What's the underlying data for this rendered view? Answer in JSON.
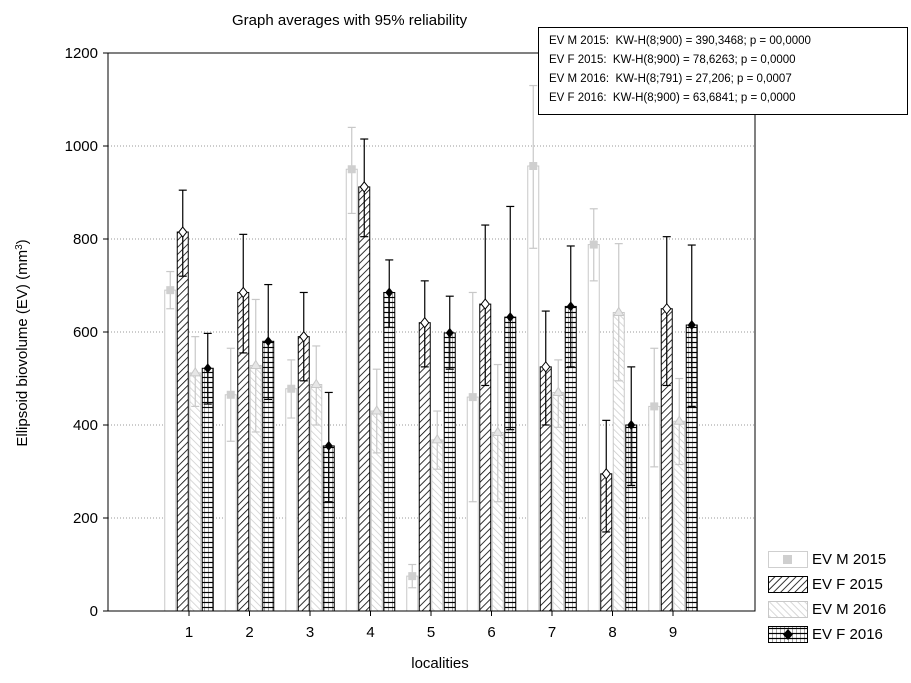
{
  "chart_data": {
    "type": "bar",
    "title": "Graph averages with 95% reliability",
    "xlabel": "localities",
    "ylabel": "Ellipsoid biovolume (EV) (mm",
    "ylabel_sup": "3",
    "ylabel_end": ")",
    "ylim": [
      0,
      1200
    ],
    "yticks": [
      "0",
      "200",
      "400",
      "600",
      "800",
      "1000",
      "1200"
    ],
    "grid": "horizontal dotted",
    "categories": [
      "1",
      "2",
      "3",
      "4",
      "5",
      "6",
      "7",
      "8",
      "9"
    ],
    "series": [
      {
        "name": "EV M 2015",
        "values": [
          690,
          465,
          478,
          950,
          75,
          460,
          957,
          788,
          440
        ],
        "ci_upper": [
          730,
          565,
          540,
          1040,
          100,
          685,
          1130,
          865,
          565
        ],
        "ci_lower": [
          650,
          365,
          415,
          855,
          50,
          235,
          780,
          710,
          310
        ]
      },
      {
        "name": "EV F 2015",
        "values": [
          815,
          685,
          590,
          912,
          620,
          660,
          525,
          295,
          650
        ],
        "ci_upper": [
          905,
          810,
          685,
          1015,
          710,
          830,
          645,
          410,
          805
        ],
        "ci_lower": [
          720,
          555,
          495,
          805,
          525,
          485,
          400,
          170,
          485
        ]
      },
      {
        "name": "EV M 2016",
        "values": [
          512,
          528,
          487,
          430,
          368,
          384,
          470,
          642,
          408
        ],
        "ci_upper": [
          590,
          670,
          570,
          520,
          430,
          530,
          540,
          790,
          500
        ],
        "ci_lower": [
          440,
          385,
          400,
          340,
          305,
          235,
          395,
          495,
          315
        ]
      },
      {
        "name": "EV F 2016",
        "values": [
          522,
          580,
          355,
          685,
          598,
          632,
          655,
          400,
          615
        ],
        "ci_upper": [
          597,
          702,
          470,
          755,
          677,
          870,
          785,
          525,
          787
        ],
        "ci_lower": [
          445,
          455,
          235,
          610,
          520,
          390,
          525,
          270,
          440
        ]
      }
    ],
    "stats": [
      "EV M 2015:  KW-H(8;900) = 390,3468; p = 00,0000",
      "EV F 2015:  KW-H(8;900) = 78,6263; p = 0,0000",
      "EV M 2016:  KW-H(8;791) = 27,206; p = 0,0007",
      "EV F 2016:  KW-H(8;900) = 63,6841; p = 0,0000"
    ],
    "legend_position": "bottom-right"
  }
}
